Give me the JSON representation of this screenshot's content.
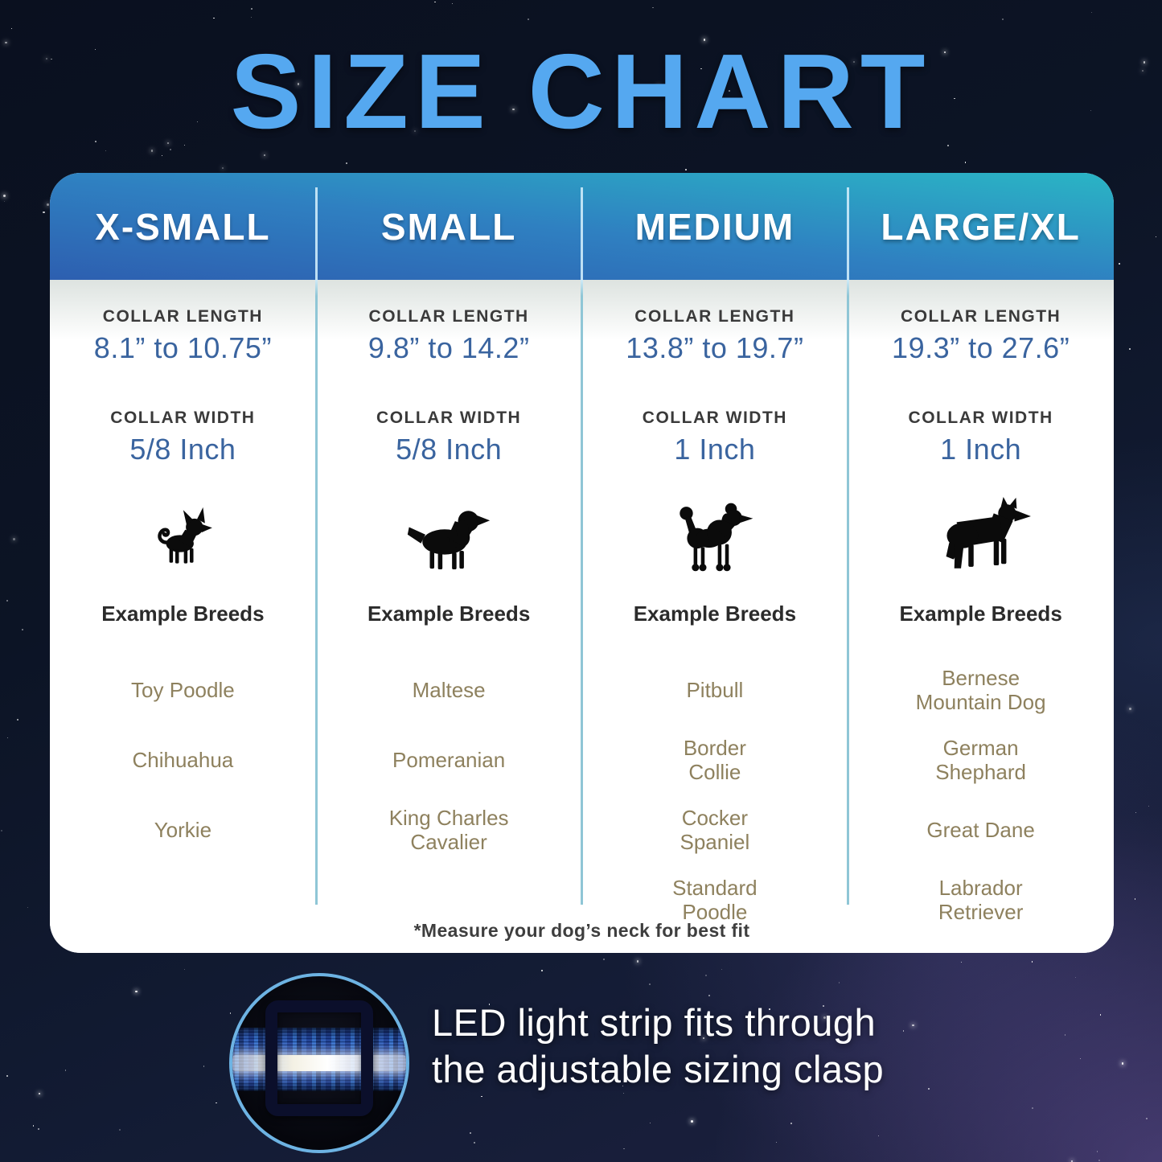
{
  "page": {
    "title": "SIZE CHART"
  },
  "table": {
    "size_headers": [
      "X-SMALL",
      "SMALL",
      "MEDIUM",
      "LARGE/XL"
    ],
    "columns": [
      {
        "size": "X-SMALL",
        "collar_length_label": "COLLAR LENGTH",
        "collar_length": "8.1” to 10.75”",
        "collar_width_label": "COLLAR WIDTH",
        "collar_width": "5/8 Inch",
        "dog_icon": "chihuahua-icon",
        "breeds_label": "Example Breeds",
        "breeds": [
          "Toy Poodle",
          "Chihuahua",
          "Yorkie"
        ]
      },
      {
        "size": "SMALL",
        "collar_length_label": "COLLAR LENGTH",
        "collar_length": "9.8” to 14.2”",
        "collar_width_label": "COLLAR WIDTH",
        "collar_width": "5/8 Inch",
        "dog_icon": "cavalier-spaniel-icon",
        "breeds_label": "Example Breeds",
        "breeds": [
          "Maltese",
          "Pomeranian",
          "King Charles\nCavalier"
        ]
      },
      {
        "size": "MEDIUM",
        "collar_length_label": "COLLAR LENGTH",
        "collar_length": "13.8” to 19.7”",
        "collar_width_label": "COLLAR WIDTH",
        "collar_width": "1 Inch",
        "dog_icon": "poodle-icon",
        "breeds_label": "Example Breeds",
        "breeds": [
          "Pitbull",
          "Border\nCollie",
          "Cocker\nSpaniel",
          "Standard\nPoodle"
        ]
      },
      {
        "size": "LARGE/XL",
        "collar_length_label": "COLLAR LENGTH",
        "collar_length": "19.3” to 27.6”",
        "collar_width_label": "COLLAR WIDTH",
        "collar_width": "1 Inch",
        "dog_icon": "german-shepherd-icon",
        "breeds_label": "Example Breeds",
        "breeds": [
          "Bernese\nMountain Dog",
          "German\nShephard",
          "Great Dane",
          "Labrador\nRetriever"
        ]
      }
    ],
    "footnote": "*Measure your dog’s neck for best fit"
  },
  "callout": {
    "line1": "LED light strip fits through",
    "line2": "the adjustable sizing clasp",
    "image_icon": "collar-clasp-photo"
  },
  "colors": {
    "title_blue": "#55a8f0",
    "header_gradient_start": "#2d5fb0",
    "header_gradient_end": "#2ab5c5",
    "value_blue": "#3a649f",
    "label_dark": "#3a3a3a",
    "breed_tan": "#8e815e",
    "divider_teal": "#8fc6d6",
    "circle_ring_blue": "#6db3e3",
    "strap_blue": "#2f6fd4",
    "led_white": "#ffffff",
    "background_navy": "#0c1425"
  },
  "chart_data": {
    "type": "table",
    "title": "SIZE CHART",
    "columns": [
      "X-SMALL",
      "SMALL",
      "MEDIUM",
      "LARGE/XL"
    ],
    "rows": [
      {
        "label": "Collar Length",
        "values": [
          "8.1” to 10.75”",
          "9.8” to 14.2”",
          "13.8” to 19.7”",
          "19.3” to 27.6”"
        ]
      },
      {
        "label": "Collar Width",
        "values": [
          "5/8 Inch",
          "5/8 Inch",
          "1 Inch",
          "1 Inch"
        ]
      },
      {
        "label": "Example Breeds",
        "values": [
          "Toy Poodle; Chihuahua; Yorkie",
          "Maltese; Pomeranian; King Charles Cavalier",
          "Pitbull; Border Collie; Cocker Spaniel; Standard Poodle",
          "Bernese Mountain Dog; German Shephard; Great Dane; Labrador Retriever"
        ]
      }
    ],
    "footnote": "*Measure your dog’s neck for best fit"
  }
}
